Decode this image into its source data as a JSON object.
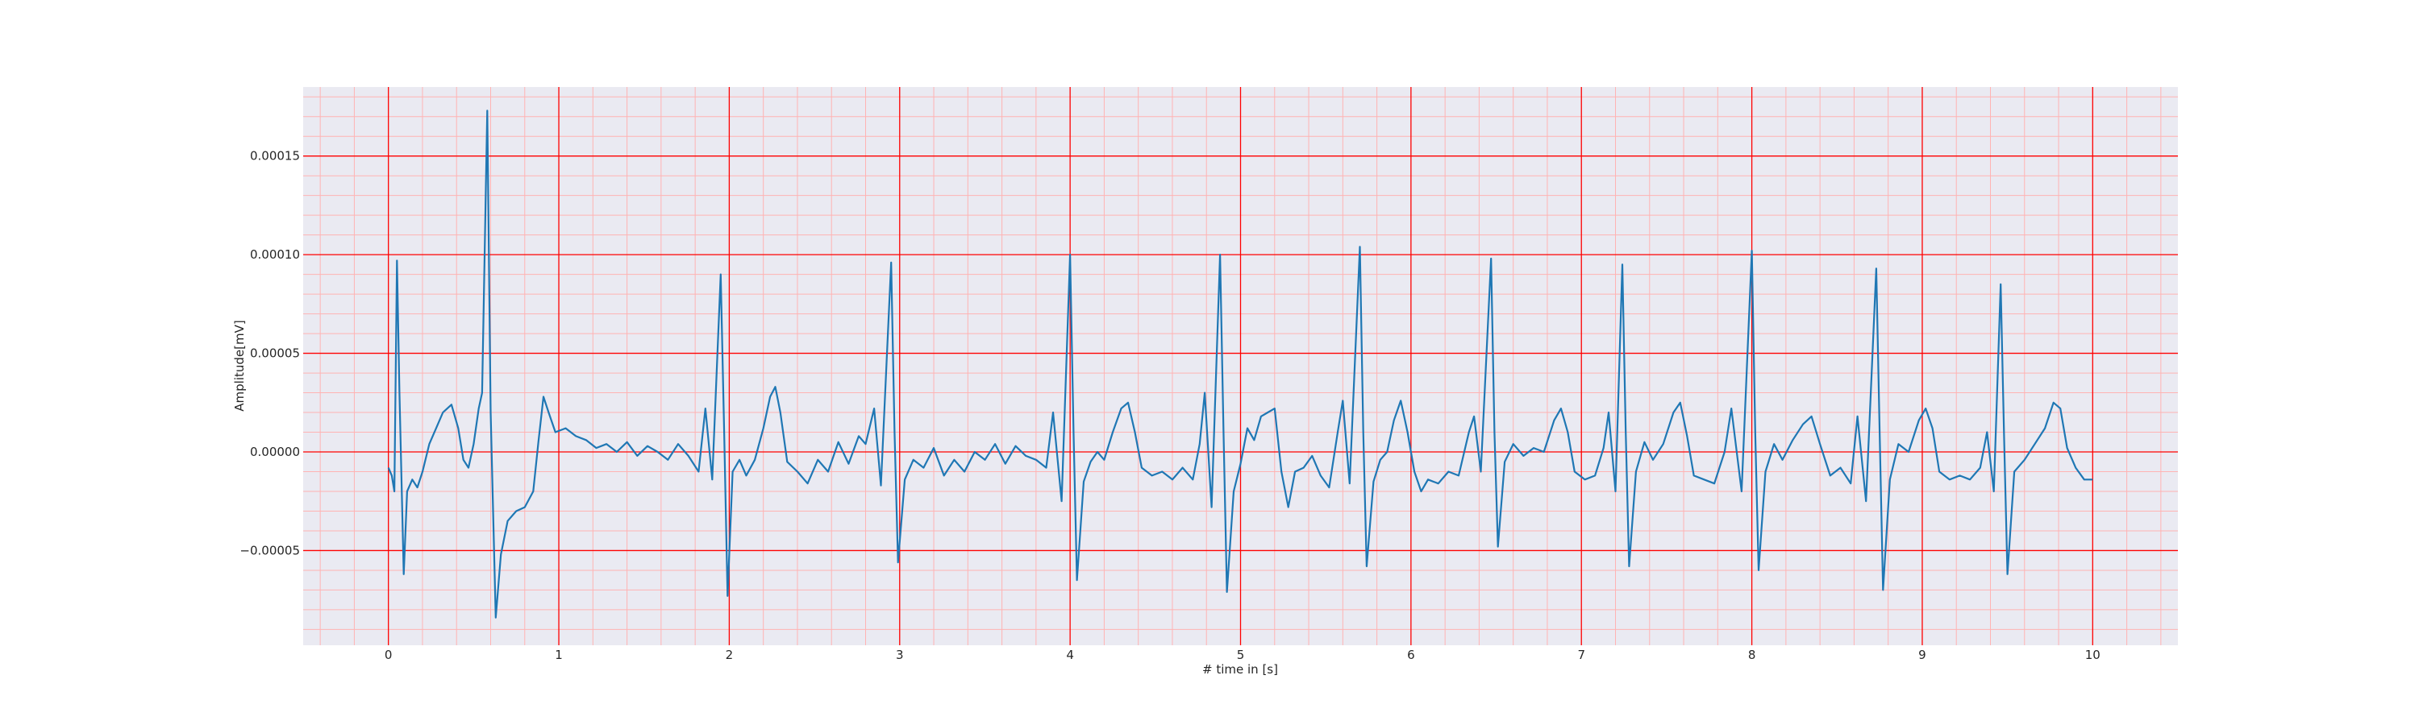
{
  "chart_data": {
    "type": "line",
    "title": "",
    "xlabel": "# time in [s]",
    "ylabel": "Amplitude[mV]",
    "xlim": [
      -0.5,
      10.5
    ],
    "ylim": [
      -9.8e-05,
      0.000185
    ],
    "x_ticks": [
      0,
      1,
      2,
      3,
      4,
      5,
      6,
      7,
      8,
      9,
      10
    ],
    "x_tick_labels": [
      "0",
      "1",
      "2",
      "3",
      "4",
      "5",
      "6",
      "7",
      "8",
      "9",
      "10"
    ],
    "y_ticks": [
      -5e-05,
      0.0,
      5e-05,
      0.0001,
      0.00015
    ],
    "y_tick_labels": [
      "−0.00005",
      "0.00000",
      "0.00005",
      "0.00010",
      "0.00015"
    ],
    "grid": {
      "major": true,
      "minor": true,
      "major_color": "#ff0000",
      "minor_color": "#ffb3b3"
    },
    "background_color": "#eaeaf2",
    "series": [
      {
        "name": "",
        "color": "#1f77b4",
        "beat_times": [
          0.05,
          0.58,
          1.95,
          2.95,
          4.0,
          4.88,
          5.7,
          6.47,
          7.24,
          8.0,
          8.73,
          9.46
        ],
        "beat_peaks": [
          9.7e-05,
          0.000173,
          9e-05,
          9.6e-05,
          0.0001,
          0.0001,
          0.000104,
          9.8e-05,
          9.5e-05,
          0.000102,
          9.3e-05,
          8.5e-05
        ],
        "beat_troughs": [
          -6.2e-05,
          -8.4e-05,
          -7.3e-05,
          -5.6e-05,
          -6.5e-05,
          -7.1e-05,
          -5.8e-05,
          -4.8e-05,
          -5.8e-05,
          -6e-05,
          -7e-05,
          -6.2e-05
        ],
        "points": [
          [
            0.0,
            -8e-06
          ],
          [
            0.02,
            -1.2e-05
          ],
          [
            0.035,
            -2e-05
          ],
          [
            0.05,
            9.7e-05
          ],
          [
            0.065,
            3e-05
          ],
          [
            0.09,
            -6.2e-05
          ],
          [
            0.11,
            -2e-05
          ],
          [
            0.14,
            -1.4e-05
          ],
          [
            0.17,
            -1.8e-05
          ],
          [
            0.2,
            -1e-05
          ],
          [
            0.24,
            4e-06
          ],
          [
            0.28,
            1.2e-05
          ],
          [
            0.32,
            2e-05
          ],
          [
            0.37,
            2.4e-05
          ],
          [
            0.41,
            1.2e-05
          ],
          [
            0.44,
            -4e-06
          ],
          [
            0.47,
            -8e-06
          ],
          [
            0.5,
            4e-06
          ],
          [
            0.53,
            2.2e-05
          ],
          [
            0.55,
            3e-05
          ],
          [
            0.58,
            0.000173
          ],
          [
            0.6,
            2e-05
          ],
          [
            0.63,
            -8.4e-05
          ],
          [
            0.66,
            -5.2e-05
          ],
          [
            0.7,
            -3.5e-05
          ],
          [
            0.75,
            -3e-05
          ],
          [
            0.8,
            -2.8e-05
          ],
          [
            0.85,
            -2e-05
          ],
          [
            0.88,
            5e-06
          ],
          [
            0.91,
            2.8e-05
          ],
          [
            0.94,
            2e-05
          ],
          [
            0.98,
            1e-05
          ],
          [
            1.04,
            1.2e-05
          ],
          [
            1.1,
            8e-06
          ],
          [
            1.16,
            6e-06
          ],
          [
            1.22,
            2e-06
          ],
          [
            1.28,
            4e-06
          ],
          [
            1.34,
            0.0
          ],
          [
            1.4,
            5e-06
          ],
          [
            1.46,
            -2e-06
          ],
          [
            1.52,
            3e-06
          ],
          [
            1.58,
            0.0
          ],
          [
            1.64,
            -4e-06
          ],
          [
            1.7,
            4e-06
          ],
          [
            1.76,
            -2e-06
          ],
          [
            1.82,
            -1e-05
          ],
          [
            1.86,
            2.2e-05
          ],
          [
            1.9,
            -1.4e-05
          ],
          [
            1.95,
            9e-05
          ],
          [
            1.97,
            1e-05
          ],
          [
            1.99,
            -7.3e-05
          ],
          [
            2.02,
            -1e-05
          ],
          [
            2.06,
            -4e-06
          ],
          [
            2.1,
            -1.2e-05
          ],
          [
            2.15,
            -4e-06
          ],
          [
            2.2,
            1.2e-05
          ],
          [
            2.24,
            2.8e-05
          ],
          [
            2.27,
            3.3e-05
          ],
          [
            2.3,
            2e-05
          ],
          [
            2.34,
            -5e-06
          ],
          [
            2.4,
            -1e-05
          ],
          [
            2.46,
            -1.6e-05
          ],
          [
            2.52,
            -4e-06
          ],
          [
            2.58,
            -1e-05
          ],
          [
            2.64,
            5e-06
          ],
          [
            2.7,
            -6e-06
          ],
          [
            2.76,
            8e-06
          ],
          [
            2.8,
            4e-06
          ],
          [
            2.85,
            2.2e-05
          ],
          [
            2.89,
            -1.7e-05
          ],
          [
            2.95,
            9.6e-05
          ],
          [
            2.97,
            1e-05
          ],
          [
            2.99,
            -5.6e-05
          ],
          [
            3.03,
            -1.4e-05
          ],
          [
            3.08,
            -4e-06
          ],
          [
            3.14,
            -8e-06
          ],
          [
            3.2,
            2e-06
          ],
          [
            3.26,
            -1.2e-05
          ],
          [
            3.32,
            -4e-06
          ],
          [
            3.38,
            -1e-05
          ],
          [
            3.44,
            0.0
          ],
          [
            3.5,
            -4e-06
          ],
          [
            3.56,
            4e-06
          ],
          [
            3.62,
            -6e-06
          ],
          [
            3.68,
            3e-06
          ],
          [
            3.74,
            -2e-06
          ],
          [
            3.8,
            -4e-06
          ],
          [
            3.86,
            -8e-06
          ],
          [
            3.9,
            2e-05
          ],
          [
            3.95,
            -2.5e-05
          ],
          [
            4.0,
            0.0001
          ],
          [
            4.02,
            1e-05
          ],
          [
            4.04,
            -6.5e-05
          ],
          [
            4.08,
            -1.5e-05
          ],
          [
            4.12,
            -5e-06
          ],
          [
            4.16,
            0.0
          ],
          [
            4.2,
            -4e-06
          ],
          [
            4.25,
            1e-05
          ],
          [
            4.3,
            2.2e-05
          ],
          [
            4.34,
            2.5e-05
          ],
          [
            4.38,
            1e-05
          ],
          [
            4.42,
            -8e-06
          ],
          [
            4.48,
            -1.2e-05
          ],
          [
            4.54,
            -1e-05
          ],
          [
            4.6,
            -1.4e-05
          ],
          [
            4.66,
            -8e-06
          ],
          [
            4.72,
            -1.4e-05
          ],
          [
            4.76,
            4e-06
          ],
          [
            4.79,
            3e-05
          ],
          [
            4.83,
            -2.8e-05
          ],
          [
            4.88,
            0.0001
          ],
          [
            4.9,
            1e-05
          ],
          [
            4.92,
            -7.1e-05
          ],
          [
            4.96,
            -2e-05
          ],
          [
            5.0,
            -6e-06
          ],
          [
            5.04,
            1.2e-05
          ],
          [
            5.08,
            6e-06
          ],
          [
            5.12,
            1.8e-05
          ],
          [
            5.16,
            2e-05
          ],
          [
            5.2,
            2.2e-05
          ],
          [
            5.24,
            -1e-05
          ],
          [
            5.28,
            -2.8e-05
          ],
          [
            5.32,
            -1e-05
          ],
          [
            5.37,
            -8e-06
          ],
          [
            5.42,
            -2e-06
          ],
          [
            5.47,
            -1.2e-05
          ],
          [
            5.52,
            -1.8e-05
          ],
          [
            5.57,
            1e-05
          ],
          [
            5.6,
            2.6e-05
          ],
          [
            5.64,
            -1.6e-05
          ],
          [
            5.7,
            0.000104
          ],
          [
            5.72,
            1e-05
          ],
          [
            5.74,
            -5.8e-05
          ],
          [
            5.78,
            -1.5e-05
          ],
          [
            5.82,
            -4e-06
          ],
          [
            5.86,
            0.0
          ],
          [
            5.9,
            1.6e-05
          ],
          [
            5.94,
            2.6e-05
          ],
          [
            5.98,
            1e-05
          ],
          [
            6.02,
            -1e-05
          ],
          [
            6.06,
            -2e-05
          ],
          [
            6.1,
            -1.4e-05
          ],
          [
            6.16,
            -1.6e-05
          ],
          [
            6.22,
            -1e-05
          ],
          [
            6.28,
            -1.2e-05
          ],
          [
            6.34,
            1e-05
          ],
          [
            6.37,
            1.8e-05
          ],
          [
            6.41,
            -1e-05
          ],
          [
            6.47,
            9.8e-05
          ],
          [
            6.49,
            1e-05
          ],
          [
            6.51,
            -4.8e-05
          ],
          [
            6.55,
            -5e-06
          ],
          [
            6.6,
            4e-06
          ],
          [
            6.66,
            -2e-06
          ],
          [
            6.72,
            2e-06
          ],
          [
            6.78,
            0.0
          ],
          [
            6.84,
            1.6e-05
          ],
          [
            6.88,
            2.2e-05
          ],
          [
            6.92,
            1e-05
          ],
          [
            6.96,
            -1e-05
          ],
          [
            7.02,
            -1.4e-05
          ],
          [
            7.08,
            -1.2e-05
          ],
          [
            7.13,
            2e-06
          ],
          [
            7.16,
            2e-05
          ],
          [
            7.2,
            -2e-05
          ],
          [
            7.24,
            9.5e-05
          ],
          [
            7.26,
            1e-05
          ],
          [
            7.28,
            -5.8e-05
          ],
          [
            7.32,
            -1e-05
          ],
          [
            7.37,
            5e-06
          ],
          [
            7.42,
            -4e-06
          ],
          [
            7.48,
            4e-06
          ],
          [
            7.54,
            2e-05
          ],
          [
            7.58,
            2.5e-05
          ],
          [
            7.62,
            8e-06
          ],
          [
            7.66,
            -1.2e-05
          ],
          [
            7.72,
            -1.4e-05
          ],
          [
            7.78,
            -1.6e-05
          ],
          [
            7.84,
            0.0
          ],
          [
            7.88,
            2.2e-05
          ],
          [
            7.94,
            -2e-05
          ],
          [
            8.0,
            0.000102
          ],
          [
            8.02,
            1e-05
          ],
          [
            8.04,
            -6e-05
          ],
          [
            8.08,
            -1e-05
          ],
          [
            8.13,
            4e-06
          ],
          [
            8.18,
            -4e-06
          ],
          [
            8.24,
            6e-06
          ],
          [
            8.3,
            1.4e-05
          ],
          [
            8.35,
            1.8e-05
          ],
          [
            8.4,
            4e-06
          ],
          [
            8.46,
            -1.2e-05
          ],
          [
            8.52,
            -8e-06
          ],
          [
            8.58,
            -1.6e-05
          ],
          [
            8.62,
            1.8e-05
          ],
          [
            8.67,
            -2.5e-05
          ],
          [
            8.73,
            9.3e-05
          ],
          [
            8.75,
            1e-05
          ],
          [
            8.77,
            -7e-05
          ],
          [
            8.81,
            -1.4e-05
          ],
          [
            8.86,
            4e-06
          ],
          [
            8.92,
            0.0
          ],
          [
            8.98,
            1.6e-05
          ],
          [
            9.02,
            2.2e-05
          ],
          [
            9.06,
            1.2e-05
          ],
          [
            9.1,
            -1e-05
          ],
          [
            9.16,
            -1.4e-05
          ],
          [
            9.22,
            -1.2e-05
          ],
          [
            9.28,
            -1.4e-05
          ],
          [
            9.34,
            -8e-06
          ],
          [
            9.38,
            1e-05
          ],
          [
            9.42,
            -2e-05
          ],
          [
            9.46,
            8.5e-05
          ],
          [
            9.48,
            8e-06
          ],
          [
            9.5,
            -6.2e-05
          ],
          [
            9.54,
            -1e-05
          ],
          [
            9.6,
            -4e-06
          ],
          [
            9.66,
            4e-06
          ],
          [
            9.72,
            1.2e-05
          ],
          [
            9.77,
            2.5e-05
          ],
          [
            9.81,
            2.2e-05
          ],
          [
            9.85,
            2e-06
          ],
          [
            9.9,
            -8e-06
          ],
          [
            9.95,
            -1.4e-05
          ],
          [
            10.0,
            -1.4e-05
          ]
        ]
      }
    ]
  }
}
